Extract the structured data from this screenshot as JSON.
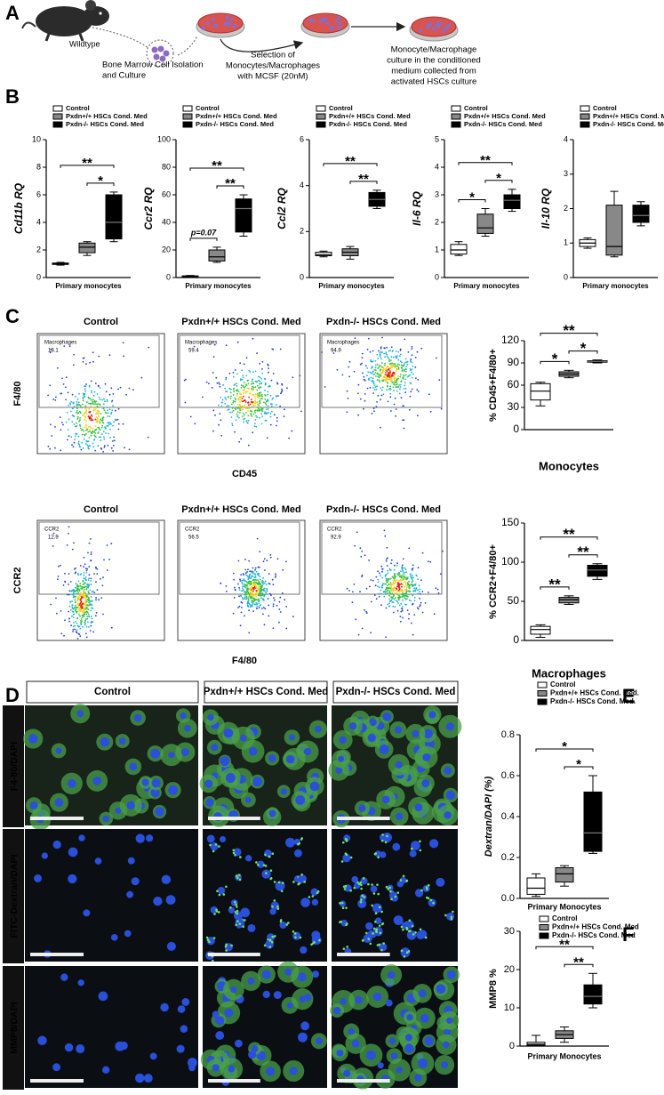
{
  "panels": [
    "A",
    "B",
    "C",
    "D",
    "E",
    "F"
  ],
  "schematic": {
    "mouse": "Wildtype",
    "steps": [
      [
        "Bone Marrow Cell Isolation",
        "and Culture"
      ],
      [
        "Selection of",
        "Monocytes/Macrophages",
        "with MCSF (20nM)"
      ],
      [
        "Monocyte/Macrophage",
        "culture in the  conditioned",
        "medium  collected from",
        "activated HSCs culture"
      ]
    ]
  },
  "flow": {
    "columns": [
      "Control",
      "Pxdn+/+ HSCs Cond. Med",
      "Pxdn-/- HSCs Cond. Med"
    ],
    "rows": [
      {
        "y_axis": "F4/80",
        "x_axis": "CD45",
        "gate": "Macrophages",
        "gate_values": [
          18.1,
          59.4,
          94.9
        ]
      },
      {
        "y_axis": "CCR2",
        "x_axis": "F4/80",
        "gate": "CCR2",
        "gate_values": [
          12.9,
          56.5,
          92.9
        ]
      }
    ]
  },
  "micrographs": {
    "columns": [
      "Control",
      "Pxdn+/+ HSCs Cond. Med",
      "Pxdn-/- HSCs Cond. Med"
    ],
    "rows": [
      "F4-80/DAPI",
      "FITC-Dextran/DAPI",
      "MMP8/DAPI"
    ]
  },
  "chart_data": [
    {
      "type": "box",
      "ylabel": "Cd11b RQ",
      "xlabel": "Primary monocytes",
      "ylim": [
        0,
        10
      ],
      "yticks": [
        0,
        2,
        4,
        6,
        8,
        10
      ],
      "series": [
        {
          "name": "Control",
          "color": "#ffffff",
          "values": [
            0.9,
            0.95,
            1.0,
            1.05,
            1.1
          ]
        },
        {
          "name": "Pxdn+/+ HSCs Cond. Med",
          "color": "#888888",
          "values": [
            1.6,
            1.8,
            2.2,
            2.5,
            2.6
          ]
        },
        {
          "name": "Pxdn-/-  HSCs Cond. Med",
          "color": "#000000",
          "values": [
            2.6,
            2.8,
            4.0,
            6.0,
            6.2
          ]
        }
      ],
      "annotations": [
        {
          "text": "**",
          "groups": [
            0,
            2
          ]
        },
        {
          "text": "*",
          "groups": [
            1,
            2
          ]
        }
      ]
    },
    {
      "type": "box",
      "ylabel": "Ccr2 RQ",
      "xlabel": "Primary monocytes",
      "ylim": [
        0,
        100
      ],
      "yticks": [
        0,
        20,
        40,
        60,
        80,
        100
      ],
      "series": [
        {
          "name": "Control",
          "color": "#ffffff",
          "values": [
            0.5,
            0.8,
            1.0,
            1.2,
            1.5
          ]
        },
        {
          "name": "Pxdn+/+ HSCs Cond. Med",
          "color": "#888888",
          "values": [
            11,
            12,
            15,
            20,
            22
          ]
        },
        {
          "name": "Pxdn-/-  HSCs Cond. Med",
          "color": "#000000",
          "values": [
            30,
            33,
            50,
            57,
            60
          ]
        }
      ],
      "annotations": [
        {
          "text": "**",
          "groups": [
            0,
            2
          ]
        },
        {
          "text": "**",
          "groups": [
            1,
            2
          ]
        },
        {
          "text": "p=0.07",
          "groups": [
            0,
            1
          ]
        }
      ]
    },
    {
      "type": "box",
      "ylabel": "Ccl2 RQ",
      "xlabel": "Primary monocytes",
      "ylim": [
        0,
        6
      ],
      "yticks": [
        0,
        2,
        4,
        6
      ],
      "series": [
        {
          "name": "Control",
          "color": "#ffffff",
          "values": [
            0.9,
            0.95,
            1.0,
            1.1,
            1.15
          ]
        },
        {
          "name": "Pxdn+/+ HSCs Cond. Med",
          "color": "#888888",
          "values": [
            0.8,
            0.95,
            1.1,
            1.25,
            1.35
          ]
        },
        {
          "name": "Pxdn-/-  HSCs Cond. Med",
          "color": "#000000",
          "values": [
            3.0,
            3.1,
            3.4,
            3.7,
            3.8
          ]
        }
      ],
      "annotations": [
        {
          "text": "**",
          "groups": [
            0,
            2
          ]
        },
        {
          "text": "**",
          "groups": [
            1,
            2
          ]
        }
      ]
    },
    {
      "type": "box",
      "ylabel": "Il-6 RQ",
      "xlabel": "Primary monocytes",
      "ylim": [
        0,
        5
      ],
      "yticks": [
        0,
        1,
        2,
        3,
        4,
        5
      ],
      "series": [
        {
          "name": "Control",
          "color": "#ffffff",
          "values": [
            0.8,
            0.85,
            1.0,
            1.2,
            1.3
          ]
        },
        {
          "name": "Pxdn+/+ HSCs Cond. Med",
          "color": "#888888",
          "values": [
            1.5,
            1.6,
            1.8,
            2.3,
            2.5
          ]
        },
        {
          "name": "Pxdn-/-  HSCs Cond. Med",
          "color": "#000000",
          "values": [
            2.4,
            2.5,
            2.8,
            3.0,
            3.2
          ]
        }
      ],
      "annotations": [
        {
          "text": "**",
          "groups": [
            0,
            2
          ]
        },
        {
          "text": "*",
          "groups": [
            0,
            1
          ]
        },
        {
          "text": "*",
          "groups": [
            1,
            2
          ]
        }
      ]
    },
    {
      "type": "box",
      "ylabel": "Il-10 RQ",
      "xlabel": "Primary monocytes",
      "ylim": [
        0,
        4
      ],
      "yticks": [
        0,
        1,
        2,
        3,
        4
      ],
      "series": [
        {
          "name": "Control",
          "color": "#ffffff",
          "values": [
            0.85,
            0.9,
            1.0,
            1.1,
            1.15
          ]
        },
        {
          "name": "Pxdn+/+ HSCs Cond. Med",
          "color": "#888888",
          "values": [
            0.6,
            0.65,
            0.9,
            2.1,
            2.5
          ]
        },
        {
          "name": "Pxdn-/-  HSCs Cond. Med",
          "color": "#000000",
          "values": [
            1.5,
            1.6,
            1.8,
            2.1,
            2.2
          ]
        }
      ],
      "annotations": []
    },
    {
      "type": "box",
      "ylabel": "% CD45+F4/80+",
      "xlabel": "Monocytes",
      "ylim": [
        0,
        120
      ],
      "yticks": [
        0,
        30,
        60,
        90,
        120
      ],
      "series": [
        {
          "color": "#ffffff",
          "values": [
            32,
            40,
            52,
            62,
            64
          ]
        },
        {
          "color": "#888888",
          "values": [
            70,
            72,
            75,
            78,
            80
          ]
        },
        {
          "color": "#000000",
          "values": [
            90,
            91,
            92,
            93,
            94
          ]
        }
      ],
      "annotations": [
        {
          "text": "**",
          "groups": [
            0,
            2
          ]
        },
        {
          "text": "*",
          "groups": [
            0,
            1
          ]
        },
        {
          "text": "*",
          "groups": [
            1,
            2
          ]
        }
      ]
    },
    {
      "type": "box",
      "ylabel": "% CCR2+F4/80+",
      "xlabel": "Macrophages",
      "ylim": [
        0,
        150
      ],
      "yticks": [
        0,
        50,
        100,
        150
      ],
      "series": [
        {
          "color": "#ffffff",
          "values": [
            4,
            8,
            14,
            18,
            20
          ]
        },
        {
          "color": "#888888",
          "values": [
            46,
            48,
            52,
            55,
            57
          ]
        },
        {
          "color": "#000000",
          "values": [
            78,
            82,
            90,
            96,
            98
          ]
        }
      ],
      "annotations": [
        {
          "text": "**",
          "groups": [
            0,
            2
          ]
        },
        {
          "text": "**",
          "groups": [
            0,
            1
          ]
        },
        {
          "text": "**",
          "groups": [
            1,
            2
          ]
        }
      ]
    },
    {
      "type": "box",
      "ylabel": "Dextran/DAPI (%)",
      "xlabel": "Primary Monocytes",
      "ylim": [
        0,
        0.8
      ],
      "yticks": [
        {
          "value": 0,
          "label": "0.0"
        },
        0.2,
        0.4,
        0.6,
        0.8
      ],
      "series": [
        {
          "name": "Control",
          "color": "#ffffff",
          "values": [
            0.01,
            0.02,
            0.05,
            0.1,
            0.12
          ]
        },
        {
          "name": "Pxdn+/+ HSCs Cond. Med.",
          "color": "#888888",
          "values": [
            0.06,
            0.08,
            0.12,
            0.15,
            0.16
          ]
        },
        {
          "name": "Pxdn-/-  HSCs Cond. Med.",
          "color": "#000000",
          "values": [
            0.22,
            0.23,
            0.32,
            0.52,
            0.6
          ]
        }
      ],
      "annotations": [
        {
          "text": "*",
          "groups": [
            0,
            2
          ]
        },
        {
          "text": "*",
          "groups": [
            1,
            2
          ]
        }
      ]
    },
    {
      "type": "box",
      "ylabel": "MMP8 %",
      "xlabel": "Primary Monocytes",
      "ylim": [
        0,
        30
      ],
      "yticks": [
        0,
        10,
        20,
        30
      ],
      "series": [
        {
          "name": "Control",
          "color": "#ffffff",
          "values": [
            0,
            0.2,
            0.5,
            1,
            2.8
          ]
        },
        {
          "name": "Pxdn+/+ HSCs Cond. Med",
          "color": "#888888",
          "values": [
            1,
            2,
            3,
            4,
            5
          ]
        },
        {
          "name": "Pxdn-/-  HSCs Cond. Med",
          "color": "#000000",
          "values": [
            10,
            11,
            13,
            16,
            19
          ]
        }
      ],
      "annotations": [
        {
          "text": "**",
          "groups": [
            0,
            2
          ]
        },
        {
          "text": "**",
          "groups": [
            1,
            2
          ]
        }
      ]
    }
  ]
}
